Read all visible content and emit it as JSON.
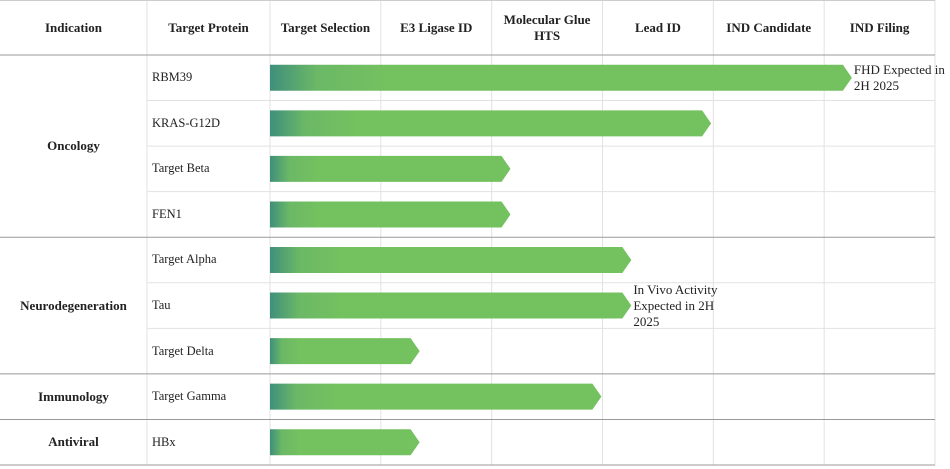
{
  "header": {
    "indication": "Indication",
    "target": "Target Protein",
    "stages": [
      "Target Selection",
      "E3 Ligase ID",
      "Molecular Glue HTS",
      "Lead ID",
      "IND Candidate",
      "IND Filing"
    ]
  },
  "groups": [
    {
      "indication": "Oncology",
      "rows": [
        {
          "target": "RBM39",
          "progress": 5.25,
          "note": "FHD Expected in 2H 2025"
        },
        {
          "target": "KRAS-G12D",
          "progress": 3.98
        },
        {
          "target": "Target Beta",
          "progress": 2.17
        },
        {
          "target": "FEN1",
          "progress": 2.17
        }
      ]
    },
    {
      "indication": "Neurodegeneration",
      "rows": [
        {
          "target": "Target Alpha",
          "progress": 3.26
        },
        {
          "target": "Tau",
          "progress": 3.26,
          "note": "In Vivo Activity Expected in 2H 2025"
        },
        {
          "target": "Target Delta",
          "progress": 1.35
        }
      ]
    },
    {
      "indication": "Immunology",
      "rows": [
        {
          "target": "Target Gamma",
          "progress": 2.99
        }
      ]
    },
    {
      "indication": "Antiviral",
      "rows": [
        {
          "target": "HBx",
          "progress": 1.35
        }
      ]
    }
  ]
}
